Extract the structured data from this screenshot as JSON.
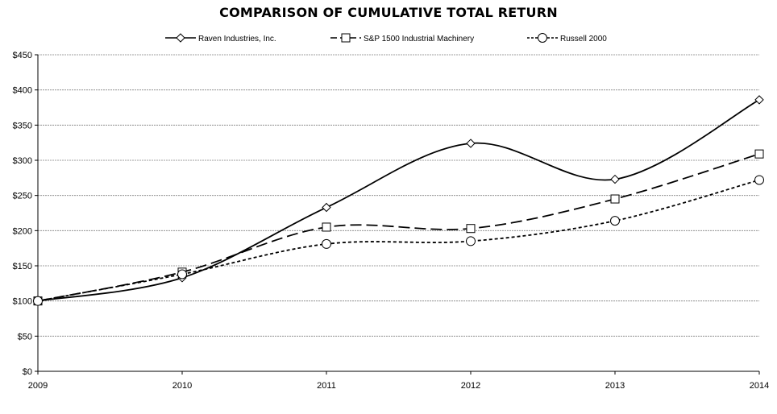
{
  "chart_data": {
    "type": "line",
    "title": "COMPARISON OF CUMULATIVE TOTAL RETURN",
    "categories": [
      "2009",
      "2010",
      "2011",
      "2012",
      "2013",
      "2014"
    ],
    "series": [
      {
        "name": "Raven Industries, Inc.",
        "values": [
          100,
          133,
          233,
          324,
          273,
          386
        ],
        "marker": "diamond",
        "line_style": "solid"
      },
      {
        "name": "S&P 1500 Industrial Machinery",
        "values": [
          100,
          141,
          205,
          203,
          245,
          309
        ],
        "marker": "square",
        "line_style": "long-dash"
      },
      {
        "name": "Russell 2000",
        "values": [
          100,
          138,
          181,
          185,
          214,
          272
        ],
        "marker": "circle",
        "line_style": "short-dash"
      }
    ],
    "yticks": [
      "$0",
      "$50",
      "$100",
      "$150",
      "$200",
      "$250",
      "$300",
      "$350",
      "$400",
      "$450"
    ],
    "ylim": [
      0,
      450
    ],
    "xlabel": "",
    "ylabel": "",
    "grid": true,
    "legend_position": "top"
  },
  "colors": {
    "line": "#000000",
    "grid": "#808080",
    "background": "#ffffff"
  }
}
